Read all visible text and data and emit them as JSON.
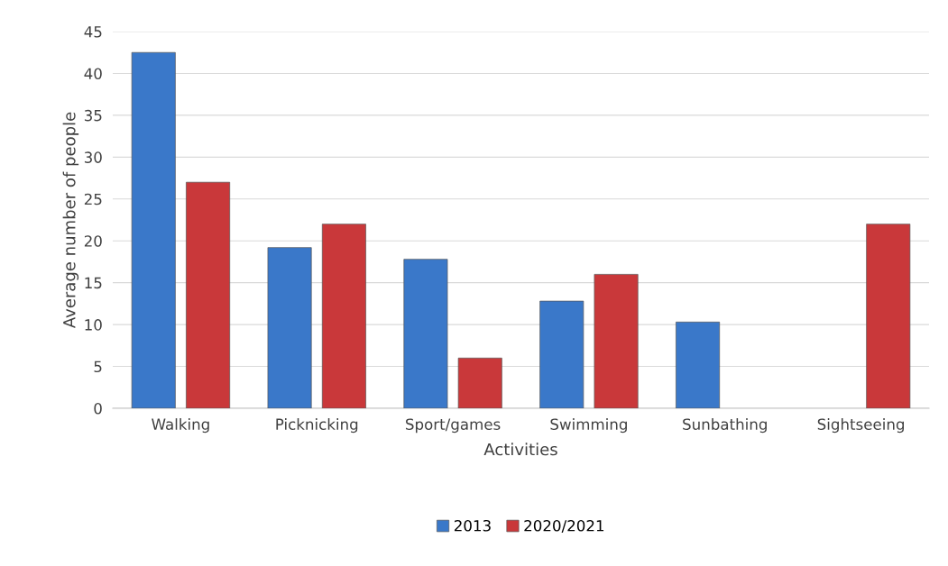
{
  "chart_data": {
    "type": "bar",
    "xlabel": "Activities",
    "ylabel": "Average number of people",
    "categories": [
      "Walking",
      "Picknicking",
      "Sport/games",
      "Swimming",
      "Sunbathing",
      "Sightseeing"
    ],
    "series": [
      {
        "name": "2013",
        "color": "#3a78c9",
        "values": [
          42.5,
          19.2,
          17.8,
          12.8,
          10.3,
          null
        ]
      },
      {
        "name": "2020/2021",
        "color": "#c9383a",
        "values": [
          27,
          22,
          6,
          16,
          null,
          22
        ]
      }
    ],
    "ylim": [
      0,
      45
    ],
    "yticks": [
      0,
      5,
      10,
      15,
      20,
      25,
      30,
      35,
      40,
      45
    ],
    "grid": "y",
    "legend": "bottom"
  }
}
